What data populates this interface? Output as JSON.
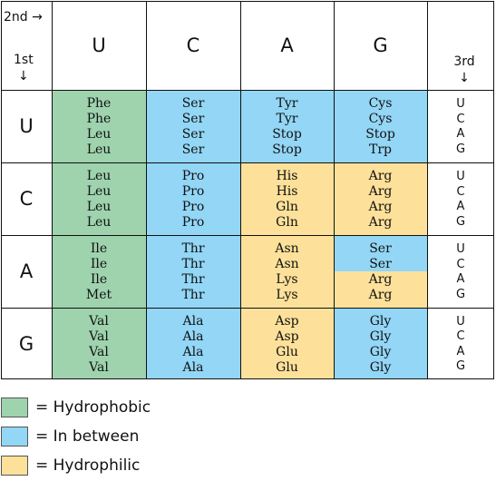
{
  "header": {
    "second_label": "2nd →",
    "first_label": "1st",
    "first_arrow": "↓",
    "third_label": "3rd",
    "third_arrow": "↓",
    "columns": [
      "U",
      "C",
      "A",
      "G"
    ]
  },
  "colors": {
    "hydrophobic": "#9ed3ae",
    "in_between": "#93d6f6",
    "hydrophilic": "#fde19a"
  },
  "rows": [
    {
      "first": "U",
      "cells": [
        {
          "color": "hydrophobic",
          "aa": [
            "Phe",
            "Phe",
            "Leu",
            "Leu"
          ]
        },
        {
          "color": "in_between",
          "aa": [
            "Ser",
            "Ser",
            "Ser",
            "Ser"
          ]
        },
        {
          "color": "in_between",
          "aa": [
            "Tyr",
            "Tyr",
            "Stop",
            "Stop"
          ]
        },
        {
          "color": "in_between",
          "aa": [
            "Cys",
            "Cys",
            "Stop",
            "Trp"
          ]
        }
      ],
      "third": [
        "U",
        "C",
        "A",
        "G"
      ]
    },
    {
      "first": "C",
      "cells": [
        {
          "color": "hydrophobic",
          "aa": [
            "Leu",
            "Leu",
            "Leu",
            "Leu"
          ]
        },
        {
          "color": "in_between",
          "aa": [
            "Pro",
            "Pro",
            "Pro",
            "Pro"
          ]
        },
        {
          "color": "hydrophilic",
          "aa": [
            "His",
            "His",
            "Gln",
            "Gln"
          ]
        },
        {
          "color": "hydrophilic",
          "aa": [
            "Arg",
            "Arg",
            "Arg",
            "Arg"
          ]
        }
      ],
      "third": [
        "U",
        "C",
        "A",
        "G"
      ]
    },
    {
      "first": "A",
      "cells": [
        {
          "color": "hydrophobic",
          "aa": [
            "Ile",
            "Ile",
            "Ile",
            "Met"
          ]
        },
        {
          "color": "in_between",
          "aa": [
            "Thr",
            "Thr",
            "Thr",
            "Thr"
          ]
        },
        {
          "color": "hydrophilic",
          "aa": [
            "Asn",
            "Asn",
            "Lys",
            "Lys"
          ]
        },
        {
          "color": "split",
          "top_color": "in_between",
          "bottom_color": "hydrophilic",
          "aa": [
            "Ser",
            "Ser",
            "Arg",
            "Arg"
          ]
        }
      ],
      "third": [
        "U",
        "C",
        "A",
        "G"
      ]
    },
    {
      "first": "G",
      "cells": [
        {
          "color": "hydrophobic",
          "aa": [
            "Val",
            "Val",
            "Val",
            "Val"
          ]
        },
        {
          "color": "in_between",
          "aa": [
            "Ala",
            "Ala",
            "Ala",
            "Ala"
          ]
        },
        {
          "color": "hydrophilic",
          "aa": [
            "Asp",
            "Asp",
            "Glu",
            "Glu"
          ]
        },
        {
          "color": "in_between",
          "aa": [
            "Gly",
            "Gly",
            "Gly",
            "Gly"
          ]
        }
      ],
      "third": [
        "U",
        "C",
        "A",
        "G"
      ]
    }
  ],
  "legend": [
    {
      "color": "hydrophobic",
      "label": "= Hydrophobic"
    },
    {
      "color": "in_between",
      "label": "= In between"
    },
    {
      "color": "hydrophilic",
      "label": "= Hydrophilic"
    }
  ]
}
